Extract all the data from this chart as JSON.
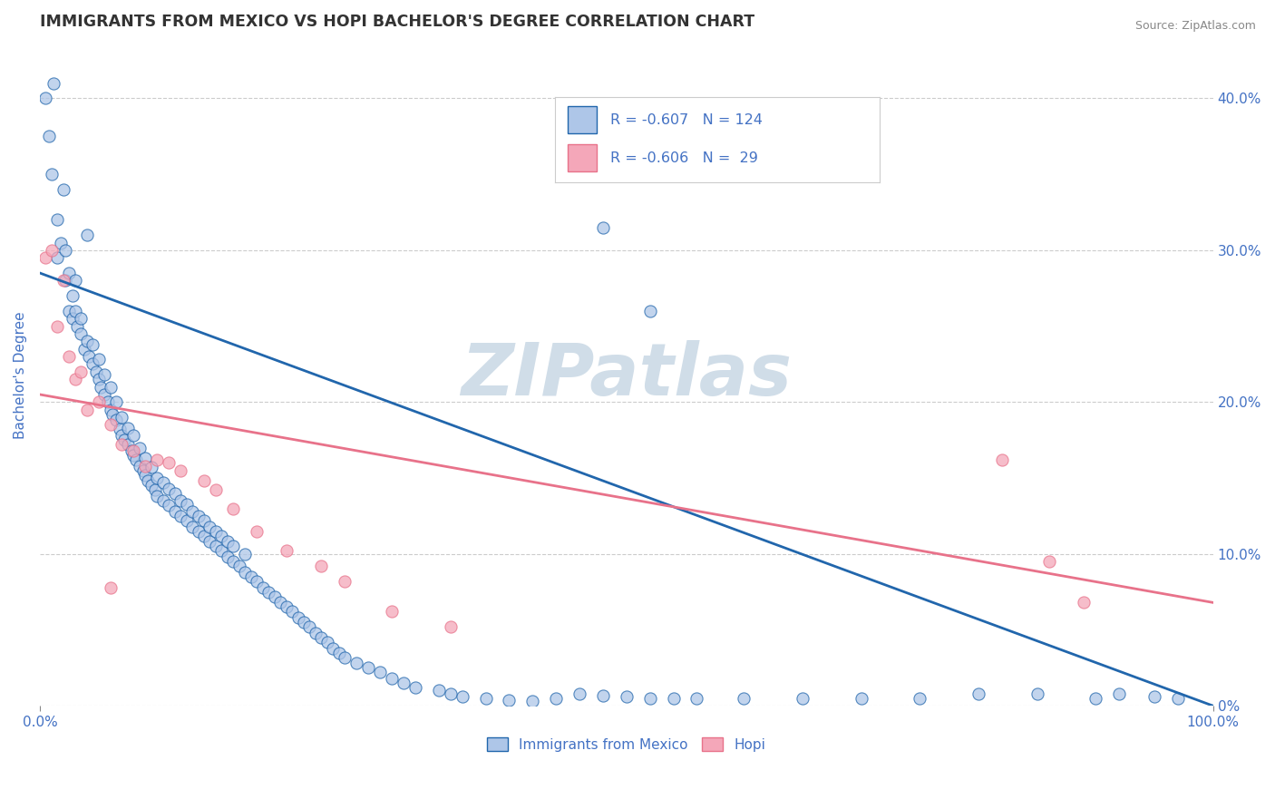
{
  "title": "IMMIGRANTS FROM MEXICO VS HOPI BACHELOR'S DEGREE CORRELATION CHART",
  "source_text": "Source: ZipAtlas.com",
  "ylabel": "Bachelor's Degree",
  "xlim": [
    0.0,
    1.0
  ],
  "ylim": [
    0.0,
    0.435
  ],
  "ytick_positions_right": [
    0.0,
    0.1,
    0.2,
    0.3,
    0.4
  ],
  "ytick_labels_right": [
    "0%",
    "10.0%",
    "20.0%",
    "30.0%",
    "40.0%"
  ],
  "legend_blue_color": "#aec6e8",
  "legend_pink_color": "#f4a7b9",
  "scatter_blue_color": "#aec6e8",
  "scatter_pink_color": "#f4a7b9",
  "line_blue_color": "#2166ac",
  "line_pink_color": "#e8728a",
  "watermark": "ZIPatlas",
  "watermark_color": "#d0dde8",
  "blue_line_x0": 0.0,
  "blue_line_y0": 0.285,
  "blue_line_x1": 1.0,
  "blue_line_y1": 0.0,
  "pink_line_x0": 0.0,
  "pink_line_y0": 0.205,
  "pink_line_x1": 1.0,
  "pink_line_y1": 0.068,
  "grid_color": "#cccccc",
  "background_color": "#ffffff",
  "title_color": "#333333",
  "axis_label_color": "#4472c4",
  "tick_label_color": "#4472c4",
  "blue_scatter": [
    [
      0.005,
      0.4
    ],
    [
      0.008,
      0.375
    ],
    [
      0.01,
      0.35
    ],
    [
      0.012,
      0.41
    ],
    [
      0.015,
      0.32
    ],
    [
      0.015,
      0.295
    ],
    [
      0.018,
      0.305
    ],
    [
      0.02,
      0.34
    ],
    [
      0.022,
      0.3
    ],
    [
      0.022,
      0.28
    ],
    [
      0.025,
      0.26
    ],
    [
      0.025,
      0.285
    ],
    [
      0.028,
      0.27
    ],
    [
      0.028,
      0.255
    ],
    [
      0.03,
      0.26
    ],
    [
      0.03,
      0.28
    ],
    [
      0.032,
      0.25
    ],
    [
      0.035,
      0.245
    ],
    [
      0.035,
      0.255
    ],
    [
      0.038,
      0.235
    ],
    [
      0.04,
      0.31
    ],
    [
      0.04,
      0.24
    ],
    [
      0.042,
      0.23
    ],
    [
      0.045,
      0.225
    ],
    [
      0.045,
      0.238
    ],
    [
      0.048,
      0.22
    ],
    [
      0.05,
      0.215
    ],
    [
      0.05,
      0.228
    ],
    [
      0.052,
      0.21
    ],
    [
      0.055,
      0.205
    ],
    [
      0.055,
      0.218
    ],
    [
      0.058,
      0.2
    ],
    [
      0.06,
      0.195
    ],
    [
      0.06,
      0.21
    ],
    [
      0.062,
      0.192
    ],
    [
      0.065,
      0.188
    ],
    [
      0.065,
      0.2
    ],
    [
      0.068,
      0.182
    ],
    [
      0.07,
      0.178
    ],
    [
      0.07,
      0.19
    ],
    [
      0.072,
      0.175
    ],
    [
      0.075,
      0.172
    ],
    [
      0.075,
      0.183
    ],
    [
      0.078,
      0.168
    ],
    [
      0.08,
      0.165
    ],
    [
      0.08,
      0.178
    ],
    [
      0.082,
      0.162
    ],
    [
      0.085,
      0.158
    ],
    [
      0.085,
      0.17
    ],
    [
      0.088,
      0.155
    ],
    [
      0.09,
      0.152
    ],
    [
      0.09,
      0.163
    ],
    [
      0.092,
      0.148
    ],
    [
      0.095,
      0.145
    ],
    [
      0.095,
      0.157
    ],
    [
      0.098,
      0.142
    ],
    [
      0.1,
      0.138
    ],
    [
      0.1,
      0.15
    ],
    [
      0.105,
      0.135
    ],
    [
      0.105,
      0.147
    ],
    [
      0.11,
      0.132
    ],
    [
      0.11,
      0.143
    ],
    [
      0.115,
      0.128
    ],
    [
      0.115,
      0.14
    ],
    [
      0.12,
      0.125
    ],
    [
      0.12,
      0.135
    ],
    [
      0.125,
      0.122
    ],
    [
      0.125,
      0.133
    ],
    [
      0.13,
      0.118
    ],
    [
      0.13,
      0.128
    ],
    [
      0.135,
      0.115
    ],
    [
      0.135,
      0.125
    ],
    [
      0.14,
      0.112
    ],
    [
      0.14,
      0.122
    ],
    [
      0.145,
      0.108
    ],
    [
      0.145,
      0.118
    ],
    [
      0.15,
      0.105
    ],
    [
      0.15,
      0.115
    ],
    [
      0.155,
      0.102
    ],
    [
      0.155,
      0.112
    ],
    [
      0.16,
      0.098
    ],
    [
      0.16,
      0.108
    ],
    [
      0.165,
      0.095
    ],
    [
      0.165,
      0.105
    ],
    [
      0.17,
      0.092
    ],
    [
      0.175,
      0.088
    ],
    [
      0.175,
      0.1
    ],
    [
      0.18,
      0.085
    ],
    [
      0.185,
      0.082
    ],
    [
      0.19,
      0.078
    ],
    [
      0.195,
      0.075
    ],
    [
      0.2,
      0.072
    ],
    [
      0.205,
      0.068
    ],
    [
      0.21,
      0.065
    ],
    [
      0.215,
      0.062
    ],
    [
      0.22,
      0.058
    ],
    [
      0.225,
      0.055
    ],
    [
      0.23,
      0.052
    ],
    [
      0.235,
      0.048
    ],
    [
      0.24,
      0.045
    ],
    [
      0.245,
      0.042
    ],
    [
      0.25,
      0.038
    ],
    [
      0.255,
      0.035
    ],
    [
      0.26,
      0.032
    ],
    [
      0.27,
      0.028
    ],
    [
      0.28,
      0.025
    ],
    [
      0.29,
      0.022
    ],
    [
      0.3,
      0.018
    ],
    [
      0.31,
      0.015
    ],
    [
      0.32,
      0.012
    ],
    [
      0.34,
      0.01
    ],
    [
      0.35,
      0.008
    ],
    [
      0.36,
      0.006
    ],
    [
      0.38,
      0.005
    ],
    [
      0.4,
      0.004
    ],
    [
      0.42,
      0.003
    ],
    [
      0.44,
      0.005
    ],
    [
      0.46,
      0.008
    ],
    [
      0.48,
      0.007
    ],
    [
      0.5,
      0.006
    ],
    [
      0.52,
      0.005
    ],
    [
      0.54,
      0.005
    ],
    [
      0.56,
      0.005
    ],
    [
      0.6,
      0.005
    ],
    [
      0.48,
      0.315
    ],
    [
      0.65,
      0.005
    ],
    [
      0.7,
      0.005
    ],
    [
      0.75,
      0.005
    ],
    [
      0.8,
      0.008
    ],
    [
      0.85,
      0.008
    ],
    [
      0.52,
      0.26
    ],
    [
      0.9,
      0.005
    ],
    [
      0.92,
      0.008
    ],
    [
      0.95,
      0.006
    ],
    [
      0.97,
      0.005
    ]
  ],
  "pink_scatter": [
    [
      0.005,
      0.295
    ],
    [
      0.01,
      0.3
    ],
    [
      0.015,
      0.25
    ],
    [
      0.02,
      0.28
    ],
    [
      0.025,
      0.23
    ],
    [
      0.03,
      0.215
    ],
    [
      0.035,
      0.22
    ],
    [
      0.04,
      0.195
    ],
    [
      0.05,
      0.2
    ],
    [
      0.06,
      0.185
    ],
    [
      0.07,
      0.172
    ],
    [
      0.08,
      0.168
    ],
    [
      0.09,
      0.158
    ],
    [
      0.1,
      0.162
    ],
    [
      0.11,
      0.16
    ],
    [
      0.12,
      0.155
    ],
    [
      0.14,
      0.148
    ],
    [
      0.15,
      0.142
    ],
    [
      0.165,
      0.13
    ],
    [
      0.185,
      0.115
    ],
    [
      0.21,
      0.102
    ],
    [
      0.24,
      0.092
    ],
    [
      0.26,
      0.082
    ],
    [
      0.3,
      0.062
    ],
    [
      0.35,
      0.052
    ],
    [
      0.06,
      0.078
    ],
    [
      0.82,
      0.162
    ],
    [
      0.86,
      0.095
    ],
    [
      0.89,
      0.068
    ]
  ]
}
